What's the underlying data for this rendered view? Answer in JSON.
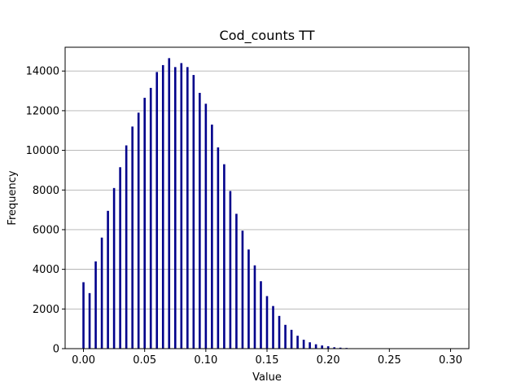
{
  "chart_data": {
    "type": "bar",
    "title": "Cod_counts TT",
    "xlabel": "Value",
    "ylabel": "Frequency",
    "xlim": [
      -0.015,
      0.315
    ],
    "ylim": [
      0,
      15200
    ],
    "xticks": [
      0.0,
      0.05,
      0.1,
      0.15,
      0.2,
      0.25,
      0.3
    ],
    "xtick_labels": [
      "0.00",
      "0.05",
      "0.10",
      "0.15",
      "0.20",
      "0.25",
      "0.30"
    ],
    "yticks": [
      0,
      2000,
      4000,
      6000,
      8000,
      10000,
      12000,
      14000
    ],
    "ytick_labels": [
      "0",
      "2000",
      "4000",
      "6000",
      "8000",
      "10000",
      "12000",
      "14000"
    ],
    "grid": "y",
    "bar_color": "#00008b",
    "grid_color": "#b0b0b0",
    "series": [
      {
        "x": [
          0.0,
          0.005,
          0.01,
          0.015,
          0.02,
          0.025,
          0.03,
          0.035,
          0.04,
          0.045,
          0.05,
          0.055,
          0.06,
          0.065,
          0.07,
          0.075,
          0.08,
          0.085,
          0.09,
          0.095,
          0.1,
          0.105,
          0.11,
          0.115,
          0.12,
          0.125,
          0.13,
          0.135,
          0.14,
          0.145,
          0.15,
          0.155,
          0.16,
          0.165,
          0.17,
          0.175,
          0.18,
          0.185,
          0.19,
          0.195,
          0.2,
          0.205,
          0.21,
          0.215,
          0.22,
          0.225
        ],
        "values": [
          3350,
          2800,
          4400,
          5600,
          6950,
          8100,
          9150,
          10250,
          11200,
          11900,
          12650,
          13150,
          13950,
          14300,
          14650,
          14200,
          14400,
          14200,
          13800,
          12900,
          12350,
          11300,
          10150,
          9300,
          7950,
          6800,
          5950,
          5000,
          4200,
          3400,
          2650,
          2150,
          1650,
          1200,
          950,
          650,
          450,
          320,
          220,
          160,
          120,
          70,
          50,
          35,
          20,
          10
        ]
      }
    ]
  }
}
